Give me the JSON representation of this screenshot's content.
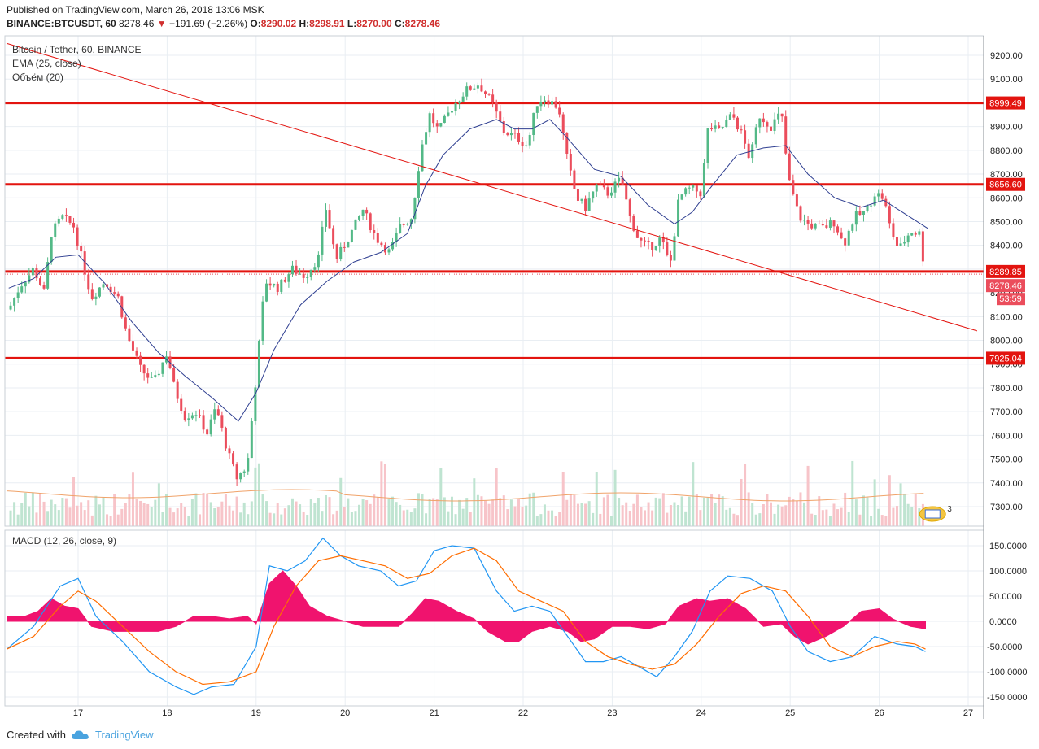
{
  "header": {
    "published": "Published on TradingView.com, March 26, 2018 13:06 MSK",
    "symbol": "BINANCE:BTCUSDT, 60",
    "last": "8278.46",
    "arrow": "▼",
    "change": "−191.69 (−2.26%)",
    "o_label": "O:",
    "o_value": "8290.02",
    "h_label": "H:",
    "h_value": "8298.91",
    "l_label": "L:",
    "l_value": "8270.00",
    "c_label": "C:",
    "c_value": "8278.46"
  },
  "legend": {
    "title": "Bitcoin / Tether, 60, BINANCE",
    "ema": "EMA (25, close)",
    "volume": "Объём (20)",
    "macd": "MACD (12, 26, close, 9)"
  },
  "footer": {
    "created": "Created with",
    "brand": "TradingView"
  },
  "badges": {
    "current_price": "8278.46",
    "countdown": "53:59",
    "events_count": "3"
  },
  "colors": {
    "up": "#53b987",
    "down": "#eb4d5c",
    "ema": "#2f3f91",
    "hline": "#e3140f",
    "trend": "#e3140f",
    "macd": "#2196f3",
    "signal": "#ff6d00",
    "hist": "#f0136e",
    "grid": "#e9eef3",
    "axis_text": "#222"
  },
  "chart_data": [
    {
      "type": "candlestick",
      "title": "Bitcoin / Tether, 60, BINANCE",
      "x_ticks": [
        "17",
        "18",
        "19",
        "20",
        "21",
        "22",
        "23",
        "24",
        "25",
        "26",
        "27"
      ],
      "x_range_days": [
        16.2,
        27.1
      ],
      "ylim": [
        7250,
        9250
      ],
      "y_ticks": [
        7300,
        7400,
        7500,
        7600,
        7700,
        7800,
        7900,
        8000,
        8100,
        8200,
        8300,
        8400,
        8500,
        8600,
        8700,
        8800,
        8900,
        9000,
        9100,
        9200
      ],
      "horizontal_levels": [
        8999.49,
        8656.6,
        8289.85,
        7925.04
      ],
      "trendline": {
        "from": {
          "day": 16.2,
          "price": 9250
        },
        "to": {
          "day": 27.1,
          "price": 8040
        }
      },
      "close_path": [
        [
          16.22,
          8130
        ],
        [
          16.35,
          8230
        ],
        [
          16.5,
          8300
        ],
        [
          16.62,
          8200
        ],
        [
          16.7,
          8450
        ],
        [
          16.82,
          8520
        ],
        [
          16.95,
          8480
        ],
        [
          17.05,
          8330
        ],
        [
          17.15,
          8180
        ],
        [
          17.3,
          8250
        ],
        [
          17.45,
          8180
        ],
        [
          17.55,
          8020
        ],
        [
          17.7,
          7880
        ],
        [
          17.85,
          7820
        ],
        [
          18.0,
          7950
        ],
        [
          18.08,
          7800
        ],
        [
          18.2,
          7680
        ],
        [
          18.32,
          7700
        ],
        [
          18.45,
          7610
        ],
        [
          18.55,
          7720
        ],
        [
          18.68,
          7530
        ],
        [
          18.78,
          7420
        ],
        [
          18.9,
          7470
        ],
        [
          19.0,
          7850
        ],
        [
          19.1,
          8250
        ],
        [
          19.25,
          8220
        ],
        [
          19.4,
          8300
        ],
        [
          19.55,
          8270
        ],
        [
          19.7,
          8350
        ],
        [
          19.78,
          8560
        ],
        [
          19.9,
          8340
        ],
        [
          20.05,
          8440
        ],
        [
          20.2,
          8550
        ],
        [
          20.35,
          8430
        ],
        [
          20.5,
          8370
        ],
        [
          20.62,
          8480
        ],
        [
          20.75,
          8520
        ],
        [
          20.85,
          8800
        ],
        [
          20.95,
          8950
        ],
        [
          21.05,
          8880
        ],
        [
          21.2,
          8980
        ],
        [
          21.35,
          9050
        ],
        [
          21.5,
          9080
        ],
        [
          21.65,
          9000
        ],
        [
          21.78,
          8880
        ],
        [
          21.9,
          8860
        ],
        [
          22.05,
          8820
        ],
        [
          22.15,
          9000
        ],
        [
          22.25,
          9020
        ],
        [
          22.4,
          8980
        ],
        [
          22.5,
          8750
        ],
        [
          22.6,
          8600
        ],
        [
          22.7,
          8560
        ],
        [
          22.82,
          8650
        ],
        [
          22.95,
          8620
        ],
        [
          23.1,
          8680
        ],
        [
          23.2,
          8520
        ],
        [
          23.3,
          8420
        ],
        [
          23.42,
          8390
        ],
        [
          23.55,
          8430
        ],
        [
          23.65,
          8310
        ],
        [
          23.75,
          8600
        ],
        [
          23.88,
          8640
        ],
        [
          24.0,
          8620
        ],
        [
          24.08,
          8900
        ],
        [
          24.2,
          8880
        ],
        [
          24.35,
          8950
        ],
        [
          24.45,
          8870
        ],
        [
          24.55,
          8760
        ],
        [
          24.65,
          8950
        ],
        [
          24.78,
          8900
        ],
        [
          24.9,
          8960
        ],
        [
          24.98,
          8680
        ],
        [
          25.1,
          8520
        ],
        [
          25.2,
          8490
        ],
        [
          25.35,
          8470
        ],
        [
          25.5,
          8500
        ],
        [
          25.6,
          8400
        ],
        [
          25.72,
          8520
        ],
        [
          25.85,
          8540
        ],
        [
          25.95,
          8620
        ],
        [
          26.05,
          8600
        ],
        [
          26.12,
          8480
        ],
        [
          26.22,
          8380
        ],
        [
          26.35,
          8460
        ],
        [
          26.45,
          8450
        ],
        [
          26.52,
          8278.46
        ]
      ],
      "ema_path": [
        [
          16.22,
          8220
        ],
        [
          16.5,
          8260
        ],
        [
          16.75,
          8350
        ],
        [
          17.0,
          8360
        ],
        [
          17.3,
          8240
        ],
        [
          17.6,
          8080
        ],
        [
          17.9,
          7950
        ],
        [
          18.2,
          7850
        ],
        [
          18.5,
          7760
        ],
        [
          18.8,
          7660
        ],
        [
          19.0,
          7780
        ],
        [
          19.2,
          7960
        ],
        [
          19.5,
          8150
        ],
        [
          19.8,
          8250
        ],
        [
          20.1,
          8330
        ],
        [
          20.4,
          8370
        ],
        [
          20.7,
          8450
        ],
        [
          20.9,
          8650
        ],
        [
          21.1,
          8780
        ],
        [
          21.4,
          8890
        ],
        [
          21.7,
          8930
        ],
        [
          21.9,
          8890
        ],
        [
          22.1,
          8890
        ],
        [
          22.3,
          8930
        ],
        [
          22.5,
          8850
        ],
        [
          22.8,
          8720
        ],
        [
          23.1,
          8690
        ],
        [
          23.4,
          8570
        ],
        [
          23.7,
          8490
        ],
        [
          23.9,
          8540
        ],
        [
          24.1,
          8640
        ],
        [
          24.4,
          8780
        ],
        [
          24.7,
          8810
        ],
        [
          24.95,
          8820
        ],
        [
          25.2,
          8700
        ],
        [
          25.5,
          8600
        ],
        [
          25.8,
          8560
        ],
        [
          26.05,
          8590
        ],
        [
          26.3,
          8530
        ],
        [
          26.55,
          8470
        ]
      ]
    },
    {
      "type": "area",
      "title": "MACD (12, 26, close, 9)",
      "ylim": [
        -160,
        170
      ],
      "y_ticks": [
        -150,
        -100,
        -50,
        0,
        50,
        100,
        150
      ],
      "series": [
        {
          "name": "MACD",
          "points": [
            [
              16.2,
              -55
            ],
            [
              16.5,
              -10
            ],
            [
              16.8,
              70
            ],
            [
              17.0,
              85
            ],
            [
              17.2,
              10
            ],
            [
              17.5,
              -40
            ],
            [
              17.8,
              -100
            ],
            [
              18.1,
              -130
            ],
            [
              18.3,
              -145
            ],
            [
              18.5,
              -130
            ],
            [
              18.75,
              -125
            ],
            [
              19.0,
              -50
            ],
            [
              19.15,
              110
            ],
            [
              19.35,
              100
            ],
            [
              19.55,
              120
            ],
            [
              19.75,
              165
            ],
            [
              19.95,
              130
            ],
            [
              20.15,
              110
            ],
            [
              20.4,
              100
            ],
            [
              20.6,
              70
            ],
            [
              20.8,
              80
            ],
            [
              21.0,
              140
            ],
            [
              21.2,
              150
            ],
            [
              21.45,
              145
            ],
            [
              21.7,
              60
            ],
            [
              21.9,
              20
            ],
            [
              22.1,
              30
            ],
            [
              22.3,
              20
            ],
            [
              22.5,
              -30
            ],
            [
              22.7,
              -80
            ],
            [
              22.9,
              -80
            ],
            [
              23.1,
              -70
            ],
            [
              23.3,
              -90
            ],
            [
              23.5,
              -110
            ],
            [
              23.7,
              -70
            ],
            [
              23.9,
              -20
            ],
            [
              24.1,
              60
            ],
            [
              24.3,
              90
            ],
            [
              24.55,
              85
            ],
            [
              24.8,
              60
            ],
            [
              25.0,
              -10
            ],
            [
              25.2,
              -60
            ],
            [
              25.45,
              -80
            ],
            [
              25.7,
              -70
            ],
            [
              25.95,
              -30
            ],
            [
              26.2,
              -45
            ],
            [
              26.4,
              -50
            ],
            [
              26.52,
              -60
            ]
          ]
        },
        {
          "name": "Signal",
          "points": [
            [
              16.2,
              -55
            ],
            [
              16.5,
              -30
            ],
            [
              16.8,
              30
            ],
            [
              17.0,
              60
            ],
            [
              17.2,
              40
            ],
            [
              17.5,
              -10
            ],
            [
              17.8,
              -60
            ],
            [
              18.1,
              -100
            ],
            [
              18.4,
              -125
            ],
            [
              18.7,
              -120
            ],
            [
              19.0,
              -100
            ],
            [
              19.2,
              -10
            ],
            [
              19.45,
              70
            ],
            [
              19.7,
              120
            ],
            [
              19.95,
              130
            ],
            [
              20.2,
              120
            ],
            [
              20.45,
              110
            ],
            [
              20.7,
              85
            ],
            [
              20.95,
              95
            ],
            [
              21.2,
              130
            ],
            [
              21.45,
              145
            ],
            [
              21.7,
              120
            ],
            [
              21.95,
              60
            ],
            [
              22.2,
              40
            ],
            [
              22.45,
              20
            ],
            [
              22.7,
              -40
            ],
            [
              22.95,
              -70
            ],
            [
              23.2,
              -85
            ],
            [
              23.45,
              -95
            ],
            [
              23.7,
              -85
            ],
            [
              23.95,
              -45
            ],
            [
              24.2,
              10
            ],
            [
              24.45,
              55
            ],
            [
              24.7,
              70
            ],
            [
              24.95,
              60
            ],
            [
              25.2,
              10
            ],
            [
              25.45,
              -50
            ],
            [
              25.7,
              -70
            ],
            [
              25.95,
              -50
            ],
            [
              26.2,
              -40
            ],
            [
              26.4,
              -45
            ],
            [
              26.52,
              -55
            ]
          ]
        },
        {
          "name": "Histogram",
          "points": [
            [
              16.2,
              10
            ],
            [
              16.4,
              10
            ],
            [
              16.55,
              20
            ],
            [
              16.7,
              45
            ],
            [
              16.85,
              30
            ],
            [
              17.0,
              25
            ],
            [
              17.15,
              -10
            ],
            [
              17.4,
              -20
            ],
            [
              17.65,
              -20
            ],
            [
              17.9,
              -20
            ],
            [
              18.1,
              -10
            ],
            [
              18.3,
              10
            ],
            [
              18.5,
              10
            ],
            [
              18.7,
              5
            ],
            [
              18.9,
              10
            ],
            [
              19.0,
              -5
            ],
            [
              19.15,
              75
            ],
            [
              19.3,
              100
            ],
            [
              19.45,
              70
            ],
            [
              19.6,
              30
            ],
            [
              19.8,
              10
            ],
            [
              20.0,
              0
            ],
            [
              20.2,
              -10
            ],
            [
              20.4,
              -10
            ],
            [
              20.6,
              -10
            ],
            [
              20.75,
              15
            ],
            [
              20.9,
              45
            ],
            [
              21.05,
              40
            ],
            [
              21.25,
              20
            ],
            [
              21.45,
              5
            ],
            [
              21.6,
              -20
            ],
            [
              21.8,
              -40
            ],
            [
              21.95,
              -40
            ],
            [
              22.1,
              -20
            ],
            [
              22.3,
              -10
            ],
            [
              22.5,
              -20
            ],
            [
              22.65,
              -40
            ],
            [
              22.8,
              -35
            ],
            [
              23.0,
              -10
            ],
            [
              23.2,
              -10
            ],
            [
              23.4,
              -15
            ],
            [
              23.6,
              -5
            ],
            [
              23.75,
              30
            ],
            [
              23.95,
              45
            ],
            [
              24.1,
              40
            ],
            [
              24.3,
              45
            ],
            [
              24.5,
              25
            ],
            [
              24.7,
              -10
            ],
            [
              24.9,
              -5
            ],
            [
              25.05,
              -30
            ],
            [
              25.2,
              -45
            ],
            [
              25.4,
              -30
            ],
            [
              25.6,
              -10
            ],
            [
              25.8,
              20
            ],
            [
              26.0,
              25
            ],
            [
              26.15,
              5
            ],
            [
              26.35,
              -10
            ],
            [
              26.52,
              -15
            ]
          ]
        }
      ]
    }
  ]
}
